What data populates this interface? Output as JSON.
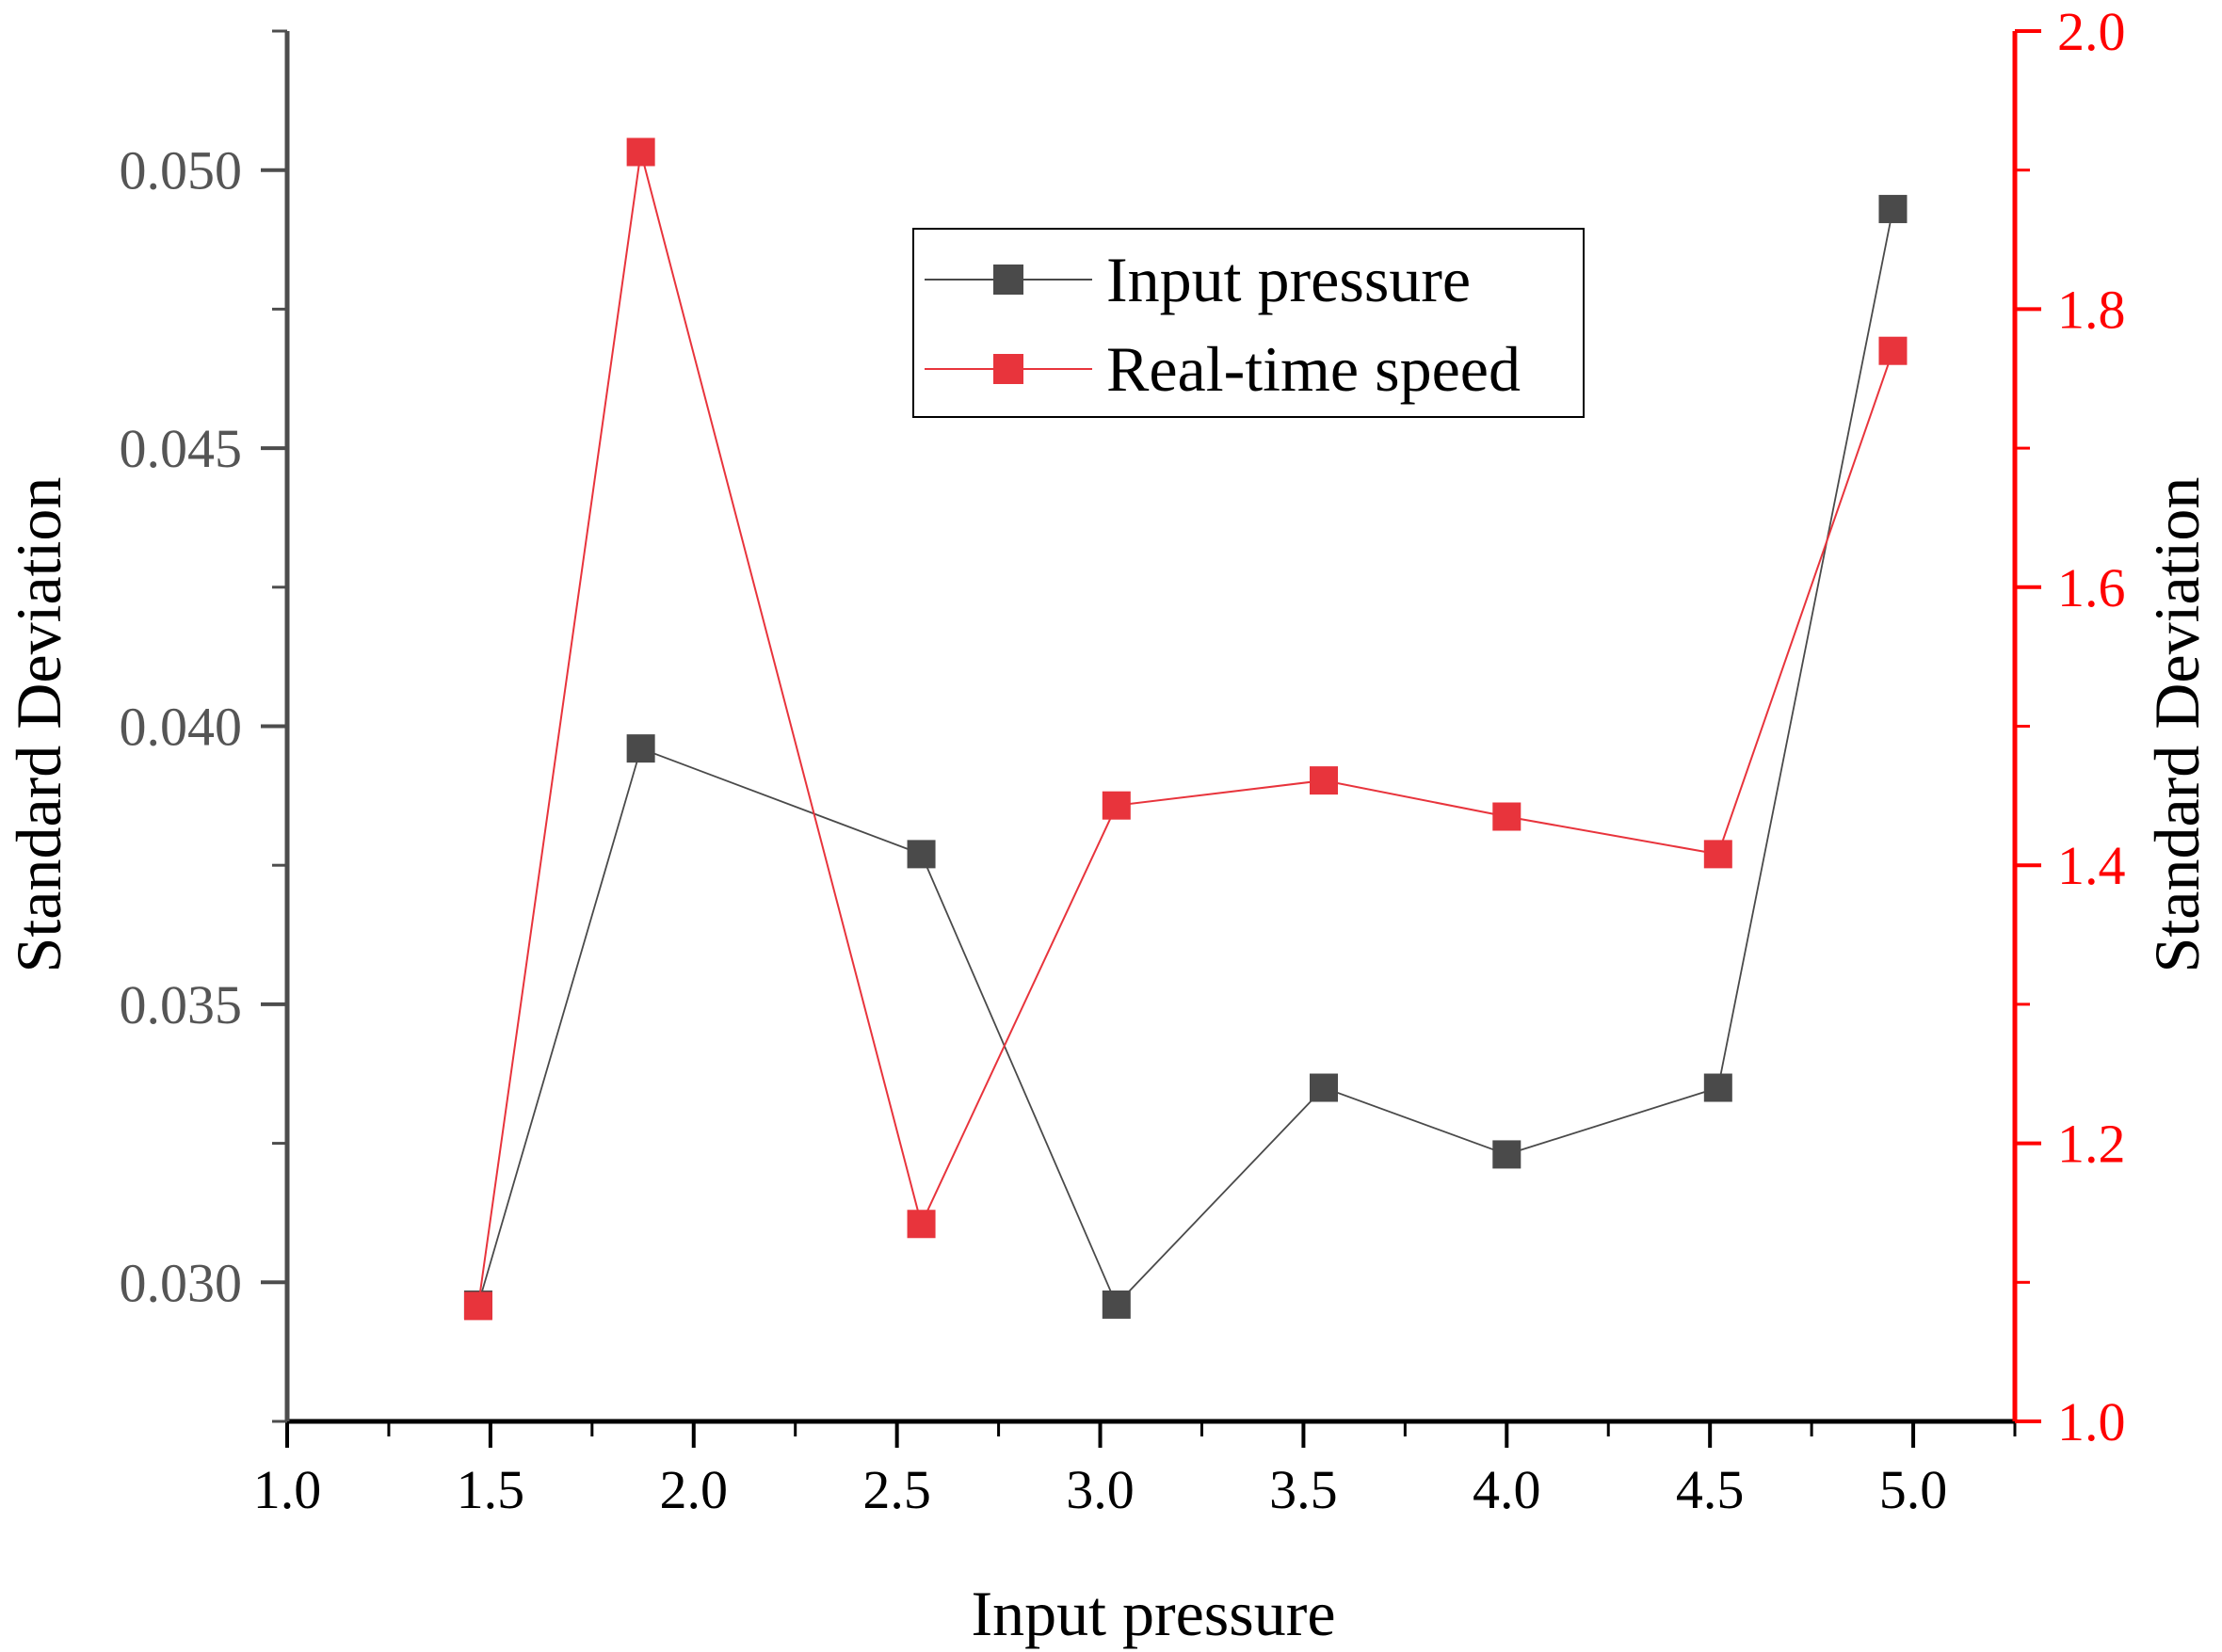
{
  "chart_data": {
    "type": "line",
    "title": "",
    "xlabel": "Input pressure",
    "ylabel": "Standard Deviation",
    "y2label": "Standard Deviation",
    "xlim": [
      1.0,
      5.25
    ],
    "ylim": [
      0.0275,
      0.0525
    ],
    "y2lim": [
      1.0,
      2.0
    ],
    "x_ticks": [
      "1.0",
      "1.5",
      "2.0",
      "2.5",
      "3.0",
      "3.5",
      "4.0",
      "4.5",
      "5.0"
    ],
    "y_ticks": [
      "0.030",
      "0.035",
      "0.040",
      "0.045",
      "0.050"
    ],
    "y2_ticks": [
      "1.0",
      "1.2",
      "1.4",
      "1.6",
      "1.8",
      "2.0"
    ],
    "grid": false,
    "legend_position": "top-center",
    "series": [
      {
        "name": "Input pressure",
        "axis": "left",
        "color": "#4a4a4a",
        "x": [
          1.47,
          1.87,
          2.56,
          3.04,
          3.55,
          4.0,
          4.52,
          4.95
        ],
        "values": [
          0.0296,
          0.0396,
          0.0377,
          0.0296,
          0.0335,
          0.0323,
          0.0335,
          0.0493
        ]
      },
      {
        "name": "Real-time speed",
        "axis": "right",
        "color": "#e8343c",
        "x": [
          1.47,
          1.87,
          2.56,
          3.04,
          3.55,
          4.0,
          4.52,
          4.95
        ],
        "values": [
          1.083,
          1.913,
          1.142,
          1.443,
          1.461,
          1.435,
          1.408,
          1.77
        ]
      }
    ]
  },
  "colors": {
    "left_axis": "#4d4d4d",
    "right_axis": "#ff0000",
    "tick_label_left": "#555555",
    "tick_label_right": "#ff0000"
  }
}
